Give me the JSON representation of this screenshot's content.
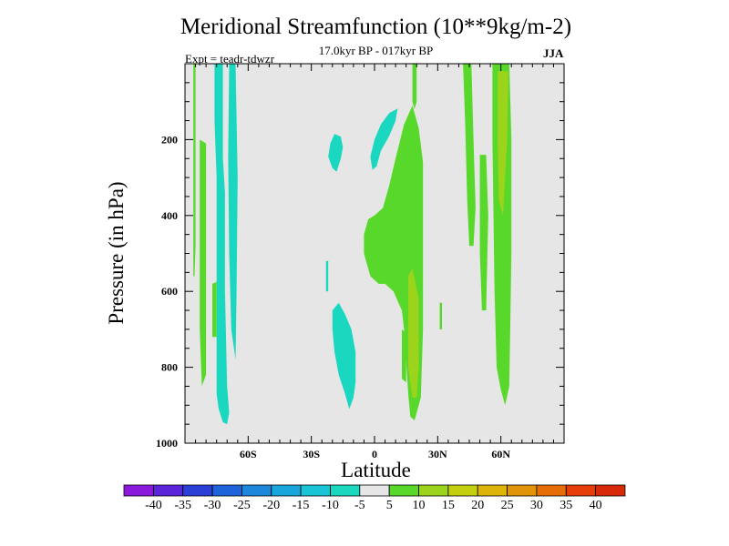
{
  "chart_data": {
    "type": "heatmap",
    "title": "Meridional Streamfunction (10**9kg/m-2)",
    "subtitle": "17.0kyr BP - 017kyr BP",
    "left_annotation": "Expt = teadr-tdwzr",
    "right_annotation": "JJA",
    "xlabel": "Latitude",
    "ylabel": "Pressure (in hPa)",
    "xlim": [
      -90,
      90
    ],
    "ylim": [
      1000,
      0
    ],
    "x_ticks": [
      {
        "value": -60,
        "label": "60S"
      },
      {
        "value": -30,
        "label": "30S"
      },
      {
        "value": 0,
        "label": "0"
      },
      {
        "value": 30,
        "label": "30N"
      },
      {
        "value": 60,
        "label": "60N"
      }
    ],
    "y_ticks": [
      {
        "value": 200,
        "label": "200"
      },
      {
        "value": 400,
        "label": "400"
      },
      {
        "value": 600,
        "label": "600"
      },
      {
        "value": 800,
        "label": "800"
      },
      {
        "value": 1000,
        "label": "1000"
      }
    ],
    "background_level": "-5 to 5",
    "colorbar": {
      "labels": [
        "-40",
        "-35",
        "-30",
        "-25",
        "-20",
        "-15",
        "-10",
        "-5",
        "5",
        "10",
        "15",
        "20",
        "25",
        "30",
        "35",
        "40"
      ],
      "colors": [
        "#8a19dc",
        "#5a25d8",
        "#2a3fd6",
        "#1f63da",
        "#1d87dc",
        "#19a6dc",
        "#18c4d6",
        "#1ad8c0",
        "#e6e6e6",
        "#58d82a",
        "#9cd41c",
        "#c4cf10",
        "#dcb508",
        "#e29408",
        "#e66d06",
        "#e63d08",
        "#d82a0a"
      ]
    },
    "regions": [
      {
        "level": "-10",
        "color": "#1ad8c0",
        "lat_range": [
          -75,
          -65
        ],
        "p_range": [
          0,
          950
        ],
        "desc": "narrow column, southern high latitudes"
      },
      {
        "level": "-10",
        "color": "#1ad8c0",
        "lat_range": [
          -22,
          -14
        ],
        "p_range": [
          180,
          280
        ],
        "desc": "upper troposphere blob"
      },
      {
        "level": "-10",
        "color": "#1ad8c0",
        "lat_range": [
          -20,
          -8
        ],
        "p_range": [
          620,
          900
        ],
        "desc": "lower troposphere blob"
      },
      {
        "level": "-10",
        "color": "#1ad8c0",
        "lat_range": [
          -5,
          10
        ],
        "p_range": [
          110,
          290
        ],
        "desc": "upper blob near equator"
      },
      {
        "level": "10",
        "color": "#58d82a",
        "lat_range": [
          -83,
          -80
        ],
        "p_range": [
          50,
          820
        ],
        "desc": "far southern column"
      },
      {
        "level": "10",
        "color": "#58d82a",
        "lat_range": [
          -10,
          25
        ],
        "p_range": [
          120,
          940
        ],
        "desc": "main positive cell"
      },
      {
        "level": "10",
        "color": "#58d82a",
        "lat_range": [
          42,
          50
        ],
        "p_range": [
          0,
          480
        ],
        "desc": "northern column"
      },
      {
        "level": "10",
        "color": "#58d82a",
        "lat_range": [
          55,
          65
        ],
        "p_range": [
          0,
          900
        ],
        "desc": "northern column"
      },
      {
        "level": "15",
        "color": "#9cd41c",
        "lat_range": [
          16,
          22
        ],
        "p_range": [
          560,
          880
        ],
        "desc": "weak maximum in main cell"
      },
      {
        "level": "15",
        "color": "#9cd41c",
        "lat_range": [
          59,
          64
        ],
        "p_range": [
          20,
          400
        ],
        "desc": "upper maximum northern column"
      }
    ]
  }
}
